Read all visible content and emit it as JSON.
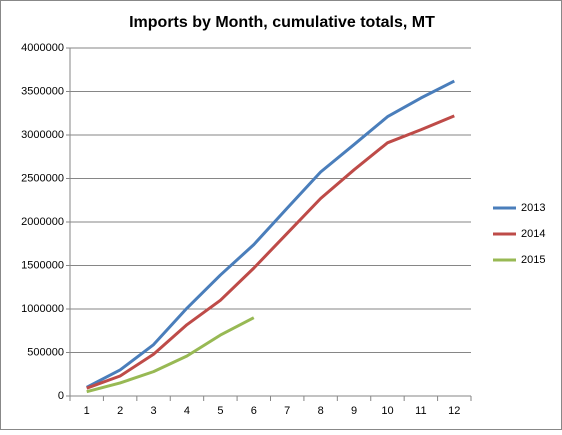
{
  "chart_data": {
    "type": "line",
    "title": "Imports by Month, cumulative totals, MT",
    "categories": [
      "1",
      "2",
      "3",
      "4",
      "5",
      "6",
      "7",
      "8",
      "9",
      "10",
      "11",
      "12"
    ],
    "series": [
      {
        "name": "2013",
        "color": "#4a7ebb",
        "values": [
          100000,
          300000,
          590000,
          1010000,
          1390000,
          1740000,
          2160000,
          2575000,
          2890000,
          3210000,
          3425000,
          3620000
        ]
      },
      {
        "name": "2014",
        "color": "#be4b48",
        "values": [
          90000,
          230000,
          480000,
          820000,
          1100000,
          1470000,
          1870000,
          2270000,
          2600000,
          2910000,
          3060000,
          3220000
        ]
      },
      {
        "name": "2015",
        "color": "#98b954",
        "values": [
          50000,
          150000,
          280000,
          460000,
          700000,
          900000,
          null,
          null,
          null,
          null,
          null,
          null
        ]
      }
    ],
    "ylim": [
      0,
      4000000
    ],
    "yticks": [
      0,
      500000,
      1000000,
      1500000,
      2000000,
      2500000,
      3000000,
      3500000,
      4000000
    ],
    "grid": true,
    "legend": "right"
  }
}
